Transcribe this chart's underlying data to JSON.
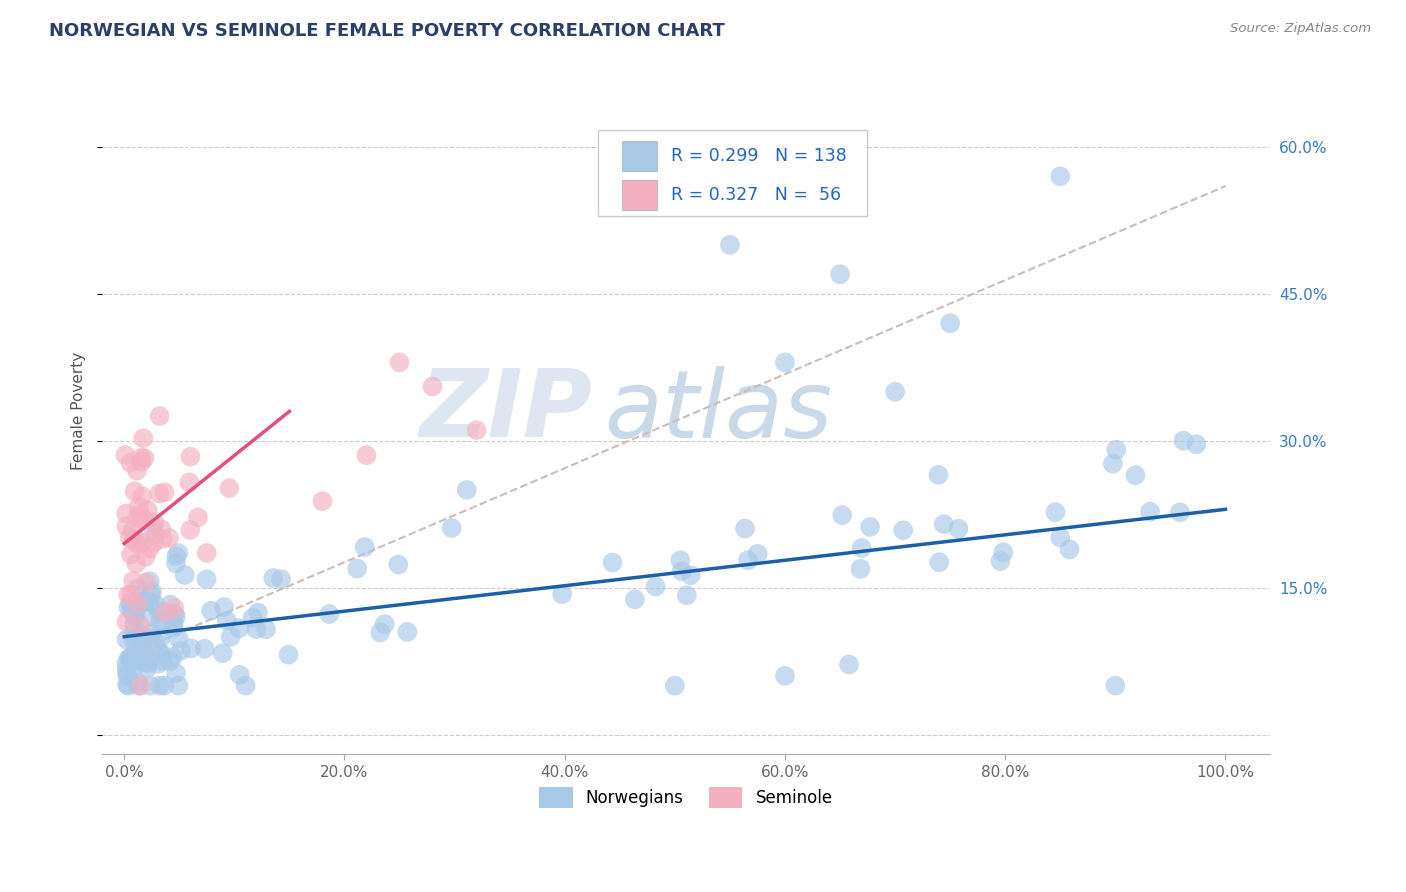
{
  "title": "NORWEGIAN VS SEMINOLE FEMALE POVERTY CORRELATION CHART",
  "source": "Source: ZipAtlas.com",
  "ylabel": "Female Poverty",
  "series": [
    {
      "name": "Norwegians",
      "color": "#a8c8e8",
      "line_color": "#1a5fa8",
      "R": 0.299,
      "N": 138
    },
    {
      "name": "Seminole",
      "color": "#f4b0c0",
      "line_color": "#e05080",
      "R": 0.327,
      "N": 56
    }
  ],
  "yticks": [
    0.0,
    0.15,
    0.3,
    0.45,
    0.6
  ],
  "ytick_labels": [
    "",
    "15.0%",
    "30.0%",
    "45.0%",
    "60.0%"
  ],
  "xticks": [
    0,
    20,
    40,
    60,
    80,
    100
  ],
  "xtick_labels": [
    "0.0%",
    "20.0%",
    "40.0%",
    "60.0%",
    "80.0%",
    "100.0%"
  ],
  "ylim": [
    -0.02,
    0.68
  ],
  "xlim": [
    -2,
    104
  ],
  "grid_color": "#cccccc",
  "background_color": "#ffffff",
  "title_color": "#2c3e6b",
  "source_color": "#888888",
  "legend_R_N_color": "#2563c7",
  "watermark_zip": "ZIP",
  "watermark_atlas": "atlas",
  "watermark_zip_color": "#c8d8e8",
  "watermark_atlas_color": "#a8c0d8",
  "trend_dash_color": "#ccbbbb"
}
